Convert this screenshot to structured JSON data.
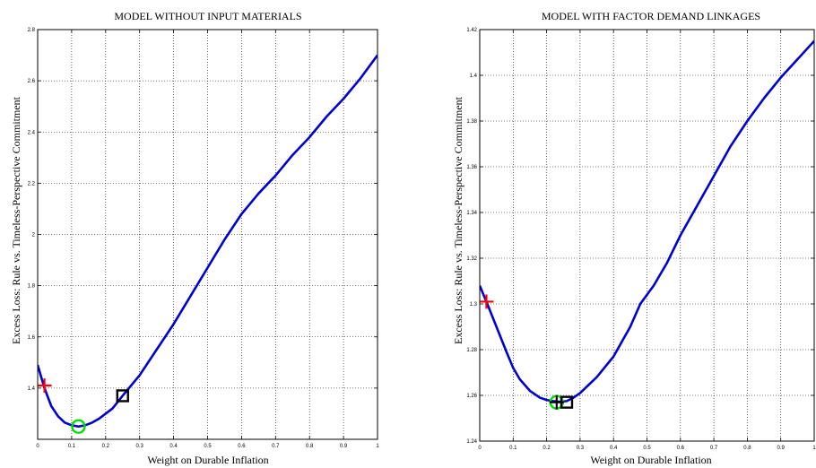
{
  "chart_data": [
    {
      "type": "line",
      "title": "MODEL WITHOUT INPUT MATERIALS",
      "xlabel": "Weight on Durable Inflation",
      "ylabel": "Excess Loss: Rule vs. Timeless-Perspective Commitment",
      "xlim": [
        0,
        1
      ],
      "ylim": [
        1.2,
        2.8
      ],
      "grid": true,
      "xticks": [
        0,
        0.1,
        0.2,
        0.3,
        0.4,
        0.5,
        0.6,
        0.7,
        0.8,
        0.9,
        1
      ],
      "xtick_labels": [
        "0",
        "0.1",
        "0.2",
        "0.3",
        "0.4",
        "0.5",
        "0.6",
        "0.7",
        "0.8",
        "0.9",
        "1"
      ],
      "yticks": [
        1.4,
        1.6,
        1.8,
        2.0,
        2.2,
        2.4,
        2.6,
        2.8
      ],
      "ytick_labels": [
        "1.4",
        "1.6",
        "1.8",
        "2",
        "2.2",
        "2.4",
        "2.6",
        "2.8"
      ],
      "series": [
        {
          "color": "#0000d0",
          "x": [
            0,
            0.02,
            0.04,
            0.06,
            0.08,
            0.1,
            0.12,
            0.14,
            0.16,
            0.18,
            0.2,
            0.22,
            0.25,
            0.3,
            0.35,
            0.4,
            0.45,
            0.5,
            0.55,
            0.6,
            0.65,
            0.7,
            0.75,
            0.8,
            0.85,
            0.9,
            0.95,
            1.0
          ],
          "y": [
            1.49,
            1.4,
            1.33,
            1.29,
            1.265,
            1.255,
            1.25,
            1.255,
            1.265,
            1.28,
            1.3,
            1.32,
            1.37,
            1.45,
            1.55,
            1.65,
            1.76,
            1.87,
            1.98,
            2.08,
            2.16,
            2.23,
            2.31,
            2.38,
            2.46,
            2.53,
            2.61,
            2.7
          ]
        }
      ],
      "markers": [
        {
          "shape": "plus",
          "color": "#ff0000",
          "x": 0.02,
          "y": 1.41
        },
        {
          "shape": "circle",
          "color": "#00dd00",
          "x": 0.12,
          "y": 1.25
        },
        {
          "shape": "square",
          "color": "#000000",
          "x": 0.25,
          "y": 1.37
        }
      ]
    },
    {
      "type": "line",
      "title": "MODEL WITH FACTOR DEMAND LINKAGES",
      "xlabel": "Weight on Durable Inflation",
      "ylabel": "Excess Loss: Rule vs. Timeless-Perspective Commitment",
      "xlim": [
        0,
        1
      ],
      "ylim": [
        1.24,
        1.42
      ],
      "grid": true,
      "xticks": [
        0,
        0.1,
        0.2,
        0.3,
        0.4,
        0.5,
        0.6,
        0.7,
        0.8,
        0.9,
        1
      ],
      "xtick_labels": [
        "0",
        "0.1",
        "0.2",
        "0.3",
        "0.4",
        "0.5",
        "0.6",
        "0.7",
        "0.8",
        "0.9",
        "1"
      ],
      "yticks": [
        1.24,
        1.26,
        1.28,
        1.3,
        1.32,
        1.34,
        1.36,
        1.38,
        1.4,
        1.42
      ],
      "ytick_labels": [
        "1.24",
        "1.26",
        "1.28",
        "1.3",
        "1.32",
        "1.34",
        "1.36",
        "1.38",
        "1.4",
        "1.42"
      ],
      "series": [
        {
          "color": "#0000d0",
          "x": [
            0,
            0.02,
            0.05,
            0.08,
            0.1,
            0.12,
            0.15,
            0.18,
            0.2,
            0.22,
            0.24,
            0.26,
            0.28,
            0.3,
            0.35,
            0.4,
            0.45,
            0.48,
            0.52,
            0.56,
            0.6,
            0.65,
            0.7,
            0.75,
            0.8,
            0.85,
            0.9,
            0.95,
            1.0
          ],
          "y": [
            1.308,
            1.301,
            1.29,
            1.279,
            1.272,
            1.267,
            1.262,
            1.259,
            1.258,
            1.2575,
            1.2572,
            1.2575,
            1.259,
            1.261,
            1.268,
            1.277,
            1.29,
            1.3,
            1.308,
            1.318,
            1.33,
            1.343,
            1.356,
            1.369,
            1.38,
            1.39,
            1.399,
            1.407,
            1.415
          ]
        }
      ],
      "markers": [
        {
          "shape": "plus",
          "color": "#ff0000",
          "x": 0.02,
          "y": 1.301
        },
        {
          "shape": "circle",
          "color": "#00dd00",
          "x": 0.23,
          "y": 1.257
        },
        {
          "shape": "square",
          "color": "#000000",
          "x": 0.26,
          "y": 1.257
        },
        {
          "shape": "plus",
          "color": "#000000",
          "x": 0.23,
          "y": 1.257
        }
      ]
    }
  ]
}
